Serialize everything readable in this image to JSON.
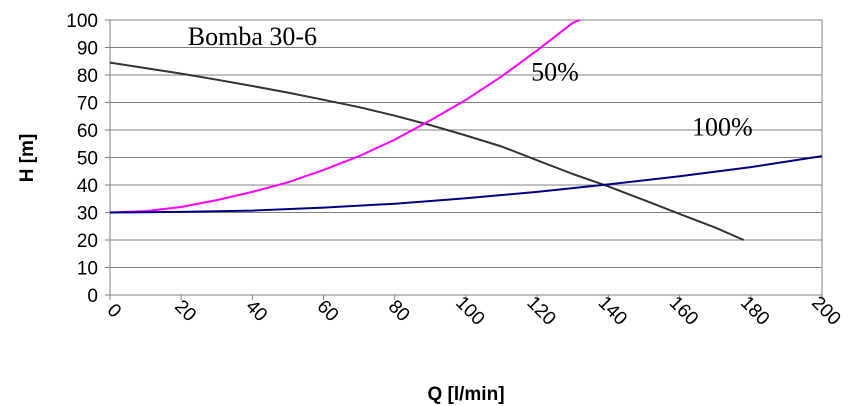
{
  "chart_data": {
    "type": "line",
    "title": "",
    "xlabel": "Q [l/min]",
    "ylabel": "H [m]",
    "xlim": [
      0,
      200
    ],
    "ylim": [
      0,
      100
    ],
    "x_ticks": [
      0,
      20,
      40,
      60,
      80,
      100,
      120,
      140,
      160,
      180,
      200
    ],
    "y_ticks": [
      0,
      10,
      20,
      30,
      40,
      50,
      60,
      70,
      80,
      90,
      100
    ],
    "grid": "horizontal",
    "legend": "none",
    "series": [
      {
        "color": "#333333",
        "x": [
          0,
          10,
          20,
          30,
          40,
          50,
          60,
          70,
          80,
          90,
          100,
          110,
          120,
          130,
          140,
          150,
          160,
          170,
          178
        ],
        "y": [
          84.5,
          82.5,
          80.5,
          78.3,
          76,
          73.6,
          71,
          68.3,
          65.2,
          61.8,
          58,
          54,
          49,
          44,
          39.5,
          34.5,
          29.5,
          24.5,
          20
        ]
      },
      {
        "color": "#ff00ff",
        "x": [
          0,
          10,
          20,
          30,
          40,
          50,
          60,
          70,
          80,
          90,
          100,
          110,
          120,
          130,
          132
        ],
        "y": [
          30,
          30.5,
          32,
          34.5,
          37.5,
          41,
          45.5,
          50.5,
          56.5,
          63.5,
          71,
          79.5,
          89,
          99,
          101
        ]
      },
      {
        "color": "#000080",
        "x": [
          0,
          20,
          40,
          60,
          80,
          100,
          120,
          140,
          160,
          180,
          200
        ],
        "y": [
          30,
          30.2,
          30.7,
          31.8,
          33.2,
          35.2,
          37.5,
          40.2,
          43.2,
          46.5,
          50.5
        ]
      }
    ],
    "annotations": [
      {
        "text": "Bomba 30-6",
        "x": 40,
        "y": 91
      },
      {
        "text": "50%",
        "x": 125,
        "y": 78
      },
      {
        "text": "100%",
        "x": 172,
        "y": 58
      }
    ]
  }
}
